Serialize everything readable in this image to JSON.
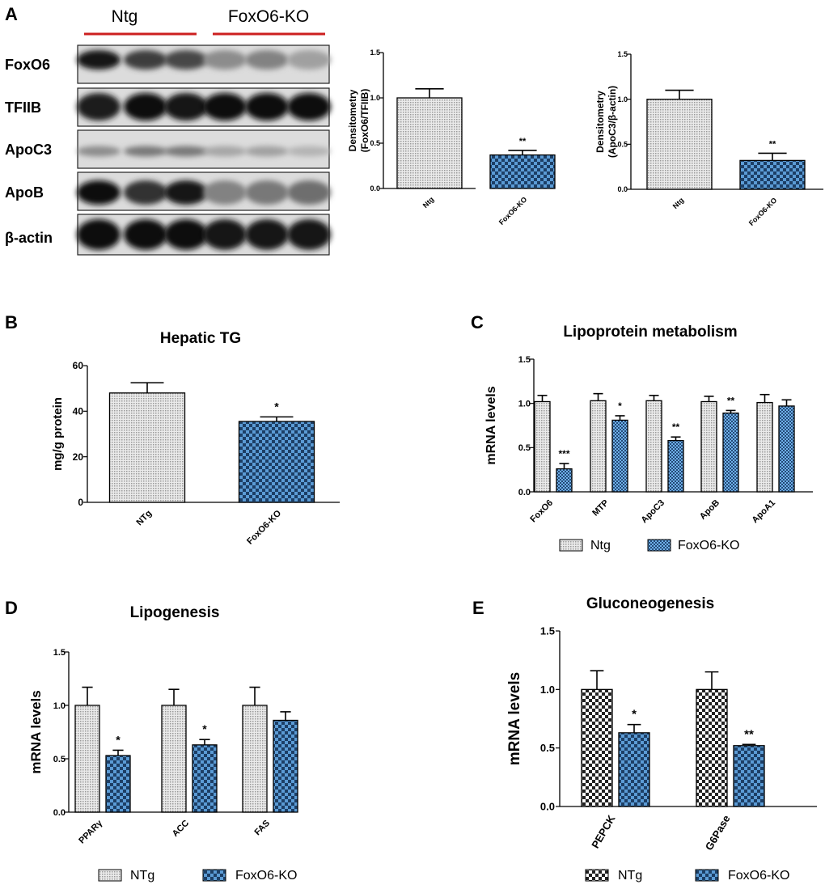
{
  "figure_labels": {
    "A": "A",
    "B": "B",
    "C": "C",
    "D": "D",
    "E": "E"
  },
  "blot": {
    "groups": [
      "Ntg",
      "FoxO6-KO"
    ],
    "rows": [
      "FoxO6",
      "TFIIB",
      "ApoC3",
      "ApoB",
      "β-actin"
    ],
    "intensity": [
      [
        0.95,
        0.75,
        0.7,
        0.35,
        0.4,
        0.25
      ],
      [
        0.9,
        1.0,
        0.95,
        1.0,
        1.0,
        1.0
      ],
      [
        0.35,
        0.45,
        0.45,
        0.22,
        0.25,
        0.15
      ],
      [
        1.0,
        0.8,
        0.95,
        0.4,
        0.45,
        0.5
      ],
      [
        1.0,
        1.0,
        1.0,
        0.95,
        0.95,
        0.95
      ]
    ],
    "group_color": "#cc1f1f"
  },
  "colors": {
    "ntg_fill": "#dddddd",
    "ko_fill": "#5b9bd5",
    "ko_dark": "#1d3f66",
    "axis": "#000000"
  },
  "chart_data": [
    {
      "id": "A1",
      "type": "bar",
      "title": "",
      "ylabel": "Densitometry (FoxO6/TFIIB)",
      "ylabel_lines": [
        "Densitometry",
        "(FoxO6/TFIIB)"
      ],
      "categories": [
        "Ntg",
        "FoxO6-KO"
      ],
      "values": [
        1.0,
        0.37
      ],
      "errors": [
        0.1,
        0.05
      ],
      "sig": [
        "",
        "**"
      ],
      "ylim": [
        0,
        1.5
      ],
      "yticks": [
        "0.0",
        "0.5",
        "1.0",
        "1.5"
      ],
      "legend": null
    },
    {
      "id": "A2",
      "type": "bar",
      "title": "",
      "ylabel": "Densitometry (ApoC3/β-actin)",
      "ylabel_lines": [
        "Densitometry",
        "(ApoC3/β-actin)"
      ],
      "categories": [
        "Ntg",
        "FoxO6-KO"
      ],
      "values": [
        1.0,
        0.32
      ],
      "errors": [
        0.1,
        0.08
      ],
      "sig": [
        "",
        "**"
      ],
      "ylim": [
        0,
        1.5
      ],
      "yticks": [
        "0.0",
        "0.5",
        "1.0",
        "1.5"
      ],
      "legend": null
    },
    {
      "id": "B",
      "type": "bar",
      "title": "Hepatic TG",
      "ylabel": "mg/g protein",
      "ylabel_lines": [
        "mg/g protein"
      ],
      "categories": [
        "NTg",
        "FoxO6-KO"
      ],
      "values": [
        48,
        35.5
      ],
      "errors": [
        4.5,
        2.0
      ],
      "sig": [
        "",
        "*"
      ],
      "ylim": [
        0,
        60
      ],
      "yticks": [
        "0",
        "20",
        "40",
        "60"
      ],
      "legend": null
    },
    {
      "id": "C",
      "type": "bar",
      "title": "Lipoprotein metabolism",
      "ylabel": "mRNA levels",
      "ylabel_lines": [
        "mRNA levels"
      ],
      "categories": [
        "FoxO6",
        "MTP",
        "ApoC3",
        "ApoB",
        "ApoA1"
      ],
      "series": [
        {
          "name": "Ntg",
          "values": [
            1.02,
            1.03,
            1.03,
            1.02,
            1.01
          ],
          "errors": [
            0.07,
            0.08,
            0.06,
            0.06,
            0.09
          ]
        },
        {
          "name": "FoxO6-KO",
          "values": [
            0.26,
            0.81,
            0.58,
            0.89,
            0.97
          ],
          "errors": [
            0.06,
            0.05,
            0.04,
            0.03,
            0.07
          ]
        }
      ],
      "sig": [
        "***",
        "*",
        "**",
        "**",
        ""
      ],
      "ylim": [
        0,
        1.5
      ],
      "yticks": [
        "0.0",
        "0.5",
        "1.0",
        "1.5"
      ],
      "legend": [
        "Ntg",
        "FoxO6-KO"
      ]
    },
    {
      "id": "D",
      "type": "bar",
      "title": "Lipogenesis",
      "ylabel": "mRNA levels",
      "ylabel_lines": [
        "mRNA levels"
      ],
      "categories": [
        "PPARγ",
        "ACC",
        "FAS"
      ],
      "series": [
        {
          "name": "NTg",
          "values": [
            1.0,
            1.0,
            1.0
          ],
          "errors": [
            0.17,
            0.15,
            0.17
          ]
        },
        {
          "name": "FoxO6-KO",
          "values": [
            0.53,
            0.63,
            0.86
          ],
          "errors": [
            0.05,
            0.05,
            0.08
          ]
        }
      ],
      "sig": [
        "*",
        "*",
        ""
      ],
      "ylim": [
        0,
        1.5
      ],
      "yticks": [
        "0.0",
        "0.5",
        "1.0",
        "1.5"
      ],
      "legend": [
        "NTg",
        "FoxO6-KO"
      ]
    },
    {
      "id": "E",
      "type": "bar",
      "title": "Gluconeogenesis",
      "ylabel": "mRNA levels",
      "ylabel_lines": [
        "mRNA levels"
      ],
      "categories": [
        "PEPCK",
        "G6Pase"
      ],
      "series": [
        {
          "name": "NTg",
          "values": [
            1.0,
            1.0
          ],
          "errors": [
            0.16,
            0.15
          ]
        },
        {
          "name": "FoxO6-KO",
          "values": [
            0.63,
            0.52
          ],
          "errors": [
            0.07,
            0.01
          ]
        }
      ],
      "sig": [
        "*",
        "**"
      ],
      "ylim": [
        0,
        1.5
      ],
      "yticks": [
        "0.0",
        "0.5",
        "1.0",
        "1.5"
      ],
      "legend": [
        "NTg",
        "FoxO6-KO"
      ]
    }
  ]
}
